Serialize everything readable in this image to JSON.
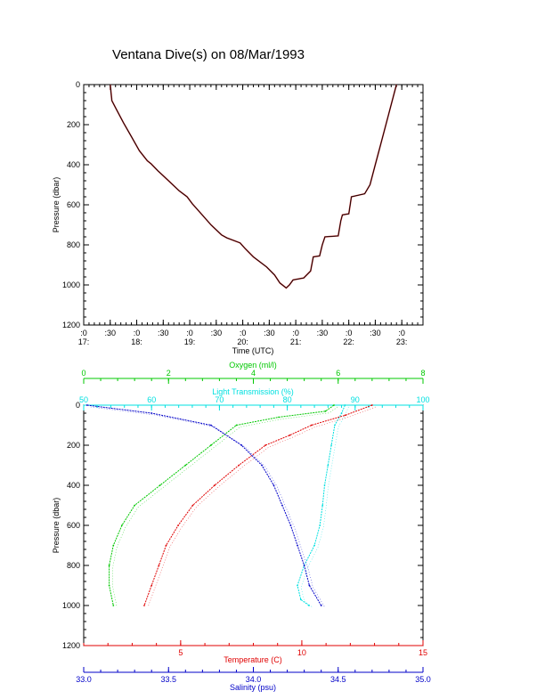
{
  "chart_data": [
    {
      "type": "line",
      "title": "Ventana Dive(s) on 08/Mar/1993",
      "xlabel": "Time (UTC)",
      "ylabel": "Pressure (dbar)",
      "x_unit": "hours UTC",
      "xlim": [
        17.0,
        23.4
      ],
      "ylim": [
        1200,
        0
      ],
      "y_ticks": [
        "0",
        "200",
        "400",
        "600",
        "800",
        "1000",
        "1200"
      ],
      "x_tick_labels": [
        {
          "x": 17.0,
          "top": ":0",
          "bottom": "17:"
        },
        {
          "x": 17.5,
          "top": ":30",
          "bottom": ""
        },
        {
          "x": 18.0,
          "top": ":0",
          "bottom": "18:"
        },
        {
          "x": 18.5,
          "top": ":30",
          "bottom": ""
        },
        {
          "x": 19.0,
          "top": ":0",
          "bottom": "19:"
        },
        {
          "x": 19.5,
          "top": ":30",
          "bottom": ""
        },
        {
          "x": 20.0,
          "top": ":0",
          "bottom": "20:"
        },
        {
          "x": 20.5,
          "top": ":30",
          "bottom": ""
        },
        {
          "x": 21.0,
          "top": ":0",
          "bottom": "21:"
        },
        {
          "x": 21.5,
          "top": ":30",
          "bottom": ""
        },
        {
          "x": 22.0,
          "top": ":0",
          "bottom": "22:"
        },
        {
          "x": 22.5,
          "top": ":30",
          "bottom": ""
        },
        {
          "x": 23.0,
          "top": ":0",
          "bottom": "23:"
        }
      ],
      "series": [
        {
          "color": "#000000",
          "points": [
            [
              17.5,
              0
            ],
            [
              17.53,
              80
            ],
            [
              17.6,
              115
            ],
            [
              17.75,
              190
            ],
            [
              17.9,
              260
            ],
            [
              18.05,
              330
            ],
            [
              18.2,
              380
            ],
            [
              18.27,
              395
            ],
            [
              18.4,
              430
            ],
            [
              18.6,
              480
            ],
            [
              18.8,
              530
            ],
            [
              18.95,
              560
            ],
            [
              19.05,
              595
            ],
            [
              19.2,
              640
            ],
            [
              19.4,
              700
            ],
            [
              19.6,
              750
            ],
            [
              19.7,
              765
            ],
            [
              19.95,
              790
            ],
            [
              20.05,
              820
            ],
            [
              20.2,
              860
            ],
            [
              20.45,
              910
            ],
            [
              20.6,
              950
            ],
            [
              20.7,
              990
            ],
            [
              20.82,
              1015
            ],
            [
              20.88,
              1000
            ],
            [
              20.95,
              975
            ],
            [
              21.15,
              965
            ],
            [
              21.28,
              930
            ],
            [
              21.33,
              860
            ],
            [
              21.45,
              855
            ],
            [
              21.5,
              800
            ],
            [
              21.55,
              760
            ],
            [
              21.8,
              755
            ],
            [
              21.85,
              680
            ],
            [
              21.88,
              650
            ],
            [
              22.0,
              645
            ],
            [
              22.05,
              560
            ],
            [
              22.3,
              545
            ],
            [
              22.4,
              500
            ],
            [
              22.5,
              400
            ],
            [
              22.6,
              300
            ],
            [
              22.75,
              150
            ],
            [
              22.9,
              0
            ]
          ]
        }
      ]
    },
    {
      "type": "line",
      "ylabel": "Pressure (dbar)",
      "ylim": [
        1200,
        0
      ],
      "y_ticks": [
        "0",
        "200",
        "400",
        "600",
        "800",
        "1000",
        "1200"
      ],
      "axes": {
        "oxygen": {
          "label": "Oxygen (ml/l)",
          "range": [
            0,
            8
          ],
          "ticks": [
            "0",
            "2",
            "4",
            "6",
            "8"
          ],
          "color": "#00c800"
        },
        "transmission": {
          "label": "Light Transmission (%)",
          "range": [
            50,
            100
          ],
          "ticks": [
            "50",
            "60",
            "70",
            "80",
            "90",
            "100"
          ],
          "color": "#00e0e0"
        },
        "temperature": {
          "label": "Temperature (C)",
          "range": [
            1,
            15
          ],
          "ticks": [
            "5",
            "10",
            "15"
          ],
          "tick_values": [
            5,
            10,
            15
          ],
          "color": "#e00000"
        },
        "salinity": {
          "label": "Salinity (psu)",
          "range": [
            33.0,
            35.0
          ],
          "ticks": [
            "33.0",
            "33.5",
            "34.0",
            "34.5",
            "35.0"
          ],
          "color": "#0000c8"
        }
      },
      "series": [
        {
          "axis": "oxygen",
          "color": "#00c800",
          "points": [
            [
              5.9,
              0
            ],
            [
              5.7,
              30
            ],
            [
              4.6,
              60
            ],
            [
              3.6,
              100
            ],
            [
              3.0,
              200
            ],
            [
              2.4,
              300
            ],
            [
              1.8,
              400
            ],
            [
              1.2,
              500
            ],
            [
              0.9,
              600
            ],
            [
              0.7,
              700
            ],
            [
              0.6,
              800
            ],
            [
              0.6,
              900
            ],
            [
              0.7,
              1000
            ]
          ]
        },
        {
          "axis": "transmission",
          "color": "#00e0e0",
          "points": [
            [
              88.5,
              0
            ],
            [
              88,
              40
            ],
            [
              87,
              100
            ],
            [
              86.5,
              200
            ],
            [
              86,
              300
            ],
            [
              85.5,
              400
            ],
            [
              85.2,
              500
            ],
            [
              84.8,
              600
            ],
            [
              84,
              700
            ],
            [
              82.5,
              800
            ],
            [
              81.5,
              900
            ],
            [
              82,
              970
            ],
            [
              83.2,
              1000
            ]
          ]
        },
        {
          "axis": "temperature",
          "color": "#e00000",
          "points": [
            [
              12.9,
              0
            ],
            [
              11.8,
              50
            ],
            [
              10.4,
              100
            ],
            [
              9.5,
              150
            ],
            [
              8.5,
              200
            ],
            [
              7.4,
              300
            ],
            [
              6.4,
              400
            ],
            [
              5.5,
              500
            ],
            [
              4.9,
              600
            ],
            [
              4.4,
              700
            ],
            [
              4.1,
              800
            ],
            [
              3.8,
              900
            ],
            [
              3.5,
              1000
            ]
          ]
        },
        {
          "axis": "salinity",
          "color": "#0000c8",
          "points": [
            [
              33.02,
              0
            ],
            [
              33.4,
              40
            ],
            [
              33.75,
              100
            ],
            [
              33.93,
              200
            ],
            [
              34.05,
              300
            ],
            [
              34.12,
              400
            ],
            [
              34.17,
              500
            ],
            [
              34.22,
              600
            ],
            [
              34.26,
              700
            ],
            [
              34.3,
              800
            ],
            [
              34.33,
              900
            ],
            [
              34.4,
              1000
            ]
          ]
        }
      ]
    }
  ]
}
